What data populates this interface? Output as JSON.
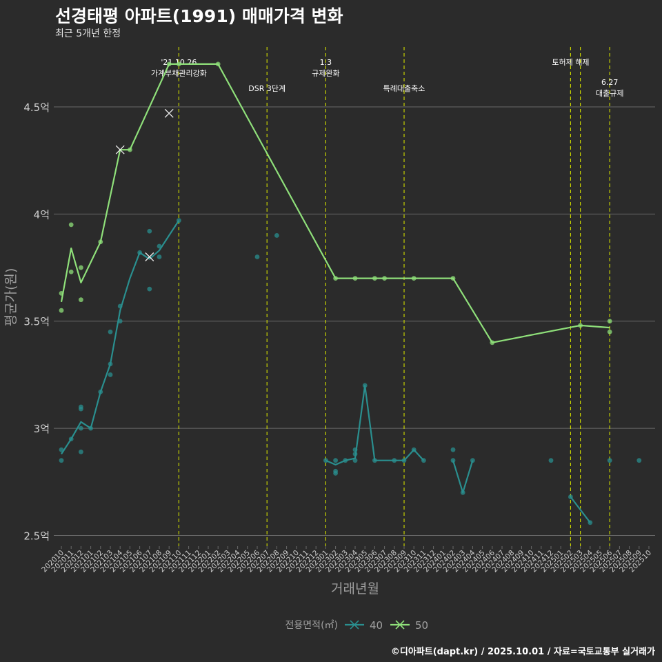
{
  "header": {
    "title": "선경태평 아파트(1991) 매매가격 변화",
    "subtitle": "최근 5개년 한정"
  },
  "footer": {
    "caption": "©디아파트(dapt.kr) / 2025.10.01 / 자료=국토교통부 실거래가"
  },
  "colors": {
    "background": "#2b2b2b",
    "grid": "#6a6a6a",
    "series_40": "#2a8f8f",
    "series_50": "#8fe07a",
    "event_line": "#c8d400",
    "axis_text": "#cfcfcf"
  },
  "chart_data": {
    "type": "line",
    "xlabel": "거래년월",
    "ylabel": "평균가(원)",
    "x_ticks": [
      "202010",
      "202011",
      "202012",
      "202101",
      "202102",
      "202103",
      "202104",
      "202105",
      "202106",
      "202107",
      "202108",
      "202109",
      "202110",
      "202111",
      "202112",
      "202201",
      "202202",
      "202203",
      "202204",
      "202205",
      "202206",
      "202207",
      "202208",
      "202209",
      "202210",
      "202211",
      "202212",
      "202301",
      "202302",
      "202303",
      "202304",
      "202305",
      "202306",
      "202307",
      "202308",
      "202309",
      "202310",
      "202311",
      "202312",
      "202401",
      "202402",
      "202403",
      "202404",
      "202405",
      "202406",
      "202407",
      "202408",
      "202409",
      "202410",
      "202411",
      "202412",
      "202501",
      "202502",
      "202503",
      "202504",
      "202505",
      "202506",
      "202507",
      "202508",
      "202509",
      "202510"
    ],
    "ylim": [
      2.45,
      4.78
    ],
    "y_ticks": [
      {
        "value": 2.5,
        "label": "2.5억"
      },
      {
        "value": 3.0,
        "label": "3억"
      },
      {
        "value": 3.5,
        "label": "3.5억"
      },
      {
        "value": 4.0,
        "label": "4억"
      },
      {
        "value": 4.5,
        "label": "4.5억"
      }
    ],
    "legend": {
      "title": "전용면적(㎡)",
      "position": "bottom",
      "entries": [
        {
          "key": "40",
          "label": "40"
        },
        {
          "key": "50",
          "label": "50"
        }
      ]
    },
    "events": [
      {
        "x": "202110",
        "lines": [
          "'21.10.26",
          "가계부채관리강화"
        ],
        "row": 1
      },
      {
        "x": "202207",
        "lines": [
          "DSR 3단계"
        ],
        "row": 2
      },
      {
        "x": "202301",
        "lines": [
          "1.3",
          "규제완화"
        ],
        "row": 1
      },
      {
        "x": "202309",
        "lines": [
          "특례대출축소"
        ],
        "row": 2
      },
      {
        "x": "202502",
        "lines": [
          "토허제 해제"
        ],
        "row": 1
      },
      {
        "x": "202503",
        "lines": [],
        "row": 1
      },
      {
        "x": "202506",
        "lines": [
          "6.27",
          "대출규제"
        ],
        "row": 3
      }
    ],
    "series": [
      {
        "name": "40",
        "line": [
          [
            [
              "202010",
              2.88
            ],
            [
              "202011",
              2.95
            ],
            [
              "202012",
              3.03
            ],
            [
              "202101",
              3.0
            ],
            [
              "202102",
              3.17
            ],
            [
              "202103",
              3.3
            ],
            [
              "202104",
              3.55
            ],
            [
              "202105",
              3.7
            ],
            [
              "202106",
              3.82
            ],
            [
              "202107",
              3.79
            ],
            [
              "202108",
              3.83
            ],
            [
              "202109",
              3.9
            ],
            [
              "202110",
              3.97
            ]
          ],
          [
            [
              "202301",
              2.85
            ],
            [
              "202302",
              2.83
            ],
            [
              "202303",
              2.85
            ],
            [
              "202304",
              2.86
            ],
            [
              "202305",
              3.2
            ],
            [
              "202306",
              2.85
            ],
            [
              "202307",
              2.85
            ],
            [
              "202308",
              2.85
            ],
            [
              "202309",
              2.85
            ],
            [
              "202310",
              2.9
            ],
            [
              "202311",
              2.85
            ]
          ],
          [
            [
              "202402",
              2.85
            ],
            [
              "202403",
              2.7
            ],
            [
              "202404",
              2.85
            ]
          ],
          [
            [
              "202502",
              2.68
            ],
            [
              "202504",
              2.56
            ]
          ]
        ],
        "points": [
          [
            "202010",
            2.9
          ],
          [
            "202010",
            2.85
          ],
          [
            "202011",
            2.95
          ],
          [
            "202012",
            3.1
          ],
          [
            "202012",
            3.09
          ],
          [
            "202012",
            3.0
          ],
          [
            "202012",
            2.89
          ],
          [
            "202101",
            3.0
          ],
          [
            "202102",
            3.17
          ],
          [
            "202103",
            3.45
          ],
          [
            "202103",
            3.3
          ],
          [
            "202103",
            3.25
          ],
          [
            "202104",
            3.57
          ],
          [
            "202104",
            3.5
          ],
          [
            "202106",
            3.82
          ],
          [
            "202107",
            3.92
          ],
          [
            "202107",
            3.65
          ],
          [
            "202108",
            3.85
          ],
          [
            "202108",
            3.8
          ],
          [
            "202110",
            3.97
          ],
          [
            "202206",
            3.8
          ],
          [
            "202208",
            3.9
          ],
          [
            "202301",
            2.85
          ],
          [
            "202302",
            2.85
          ],
          [
            "202302",
            2.8
          ],
          [
            "202302",
            2.79
          ],
          [
            "202303",
            2.85
          ],
          [
            "202304",
            2.9
          ],
          [
            "202304",
            2.88
          ],
          [
            "202304",
            2.85
          ],
          [
            "202305",
            3.2
          ],
          [
            "202306",
            2.85
          ],
          [
            "202308",
            2.85
          ],
          [
            "202309",
            2.85
          ],
          [
            "202310",
            2.9
          ],
          [
            "202311",
            2.85
          ],
          [
            "202402",
            2.9
          ],
          [
            "202402",
            2.85
          ],
          [
            "202403",
            2.7
          ],
          [
            "202404",
            2.85
          ],
          [
            "202412",
            2.85
          ],
          [
            "202502",
            2.68
          ],
          [
            "202504",
            2.56
          ],
          [
            "202506",
            2.85
          ],
          [
            "202509",
            2.85
          ]
        ],
        "cross_points": [
          [
            "202107",
            3.8
          ]
        ]
      },
      {
        "name": "50",
        "line": [
          [
            [
              "202010",
              3.59
            ],
            [
              "202011",
              3.84
            ],
            [
              "202012",
              3.68
            ],
            [
              "202102",
              3.87
            ],
            [
              "202104",
              4.3
            ],
            [
              "202105",
              4.3
            ],
            [
              "202109",
              4.7
            ],
            [
              "202110",
              4.7
            ],
            [
              "202202",
              4.7
            ],
            [
              "202302",
              3.7
            ],
            [
              "202304",
              3.7
            ],
            [
              "202306",
              3.7
            ],
            [
              "202307",
              3.7
            ],
            [
              "202310",
              3.7
            ],
            [
              "202402",
              3.7
            ],
            [
              "202406",
              3.4
            ],
            [
              "202503",
              3.48
            ],
            [
              "202506",
              3.47
            ]
          ]
        ],
        "points": [
          [
            "202010",
            3.63
          ],
          [
            "202010",
            3.55
          ],
          [
            "202011",
            3.95
          ],
          [
            "202011",
            3.73
          ],
          [
            "202012",
            3.75
          ],
          [
            "202012",
            3.6
          ],
          [
            "202102",
            3.87
          ],
          [
            "202105",
            4.3
          ],
          [
            "202109",
            4.7
          ],
          [
            "202110",
            4.7
          ],
          [
            "202202",
            4.7
          ],
          [
            "202302",
            3.7
          ],
          [
            "202304",
            3.7
          ],
          [
            "202306",
            3.7
          ],
          [
            "202307",
            3.7
          ],
          [
            "202310",
            3.7
          ],
          [
            "202402",
            3.7
          ],
          [
            "202406",
            3.4
          ],
          [
            "202503",
            3.48
          ],
          [
            "202506",
            3.5
          ],
          [
            "202506",
            3.45
          ]
        ],
        "cross_points": [
          [
            "202104",
            4.3
          ],
          [
            "202109",
            4.47
          ]
        ]
      }
    ]
  }
}
